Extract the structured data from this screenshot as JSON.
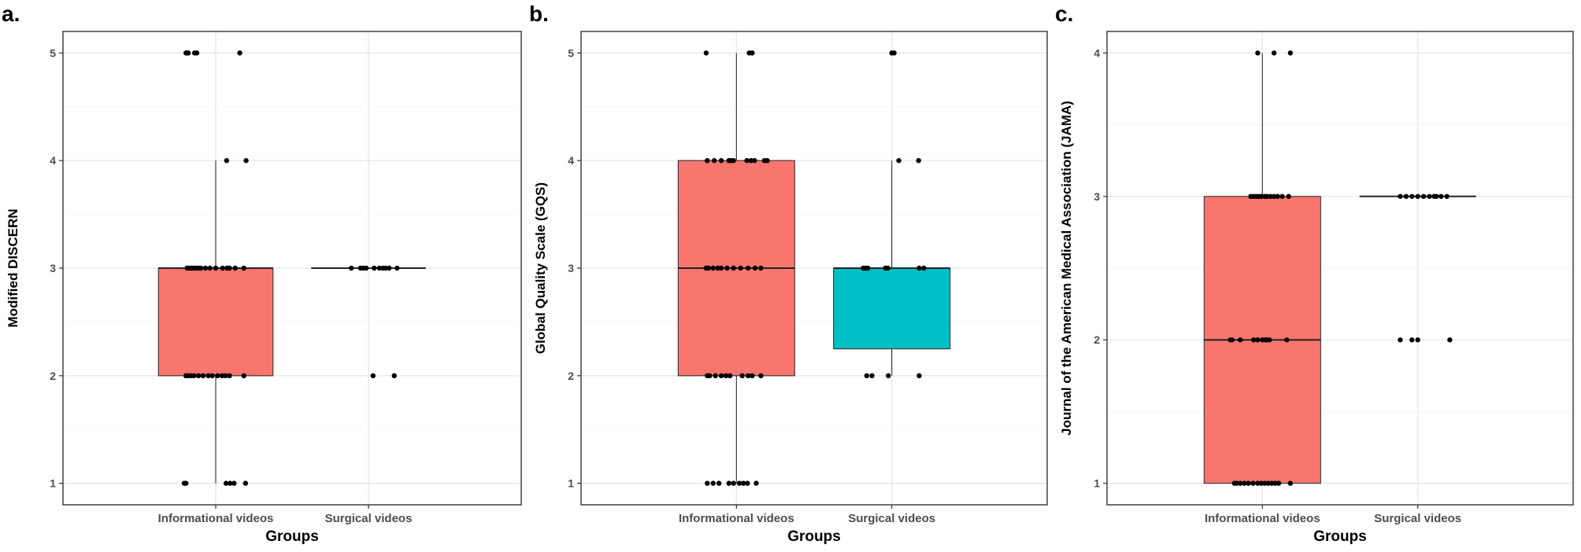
{
  "chart_data": [
    {
      "type": "box",
      "panel_label": "a.",
      "xlabel": "Groups",
      "ylabel": "Modified DISCERN",
      "categories": [
        "Informational videos",
        "Surgical videos"
      ],
      "ylim": [
        0.8,
        5.2
      ],
      "yticks": [
        1,
        2,
        3,
        4,
        5
      ],
      "grid": true,
      "series": [
        {
          "category": "Informational videos",
          "color": "#F8766D",
          "box": {
            "min": 1,
            "q1": 2,
            "median": 3,
            "q3": 3,
            "max": 4
          },
          "points": [
            {
              "x": -0.52,
              "y": 5
            },
            {
              "x": -0.5,
              "y": 5
            },
            {
              "x": -0.48,
              "y": 5
            },
            {
              "x": -0.37,
              "y": 5
            },
            {
              "x": -0.33,
              "y": 5
            },
            {
              "x": 0.42,
              "y": 5
            },
            {
              "x": 0.19,
              "y": 4
            },
            {
              "x": 0.53,
              "y": 4
            },
            {
              "x": -0.5,
              "y": 3
            },
            {
              "x": -0.46,
              "y": 3
            },
            {
              "x": -0.42,
              "y": 3
            },
            {
              "x": -0.38,
              "y": 3
            },
            {
              "x": -0.34,
              "y": 3
            },
            {
              "x": -0.3,
              "y": 3
            },
            {
              "x": -0.26,
              "y": 3
            },
            {
              "x": -0.18,
              "y": 3
            },
            {
              "x": -0.1,
              "y": 3
            },
            {
              "x": 0.0,
              "y": 3
            },
            {
              "x": 0.12,
              "y": 3
            },
            {
              "x": 0.2,
              "y": 3
            },
            {
              "x": 0.24,
              "y": 3
            },
            {
              "x": 0.34,
              "y": 3
            },
            {
              "x": 0.49,
              "y": 3
            },
            {
              "x": -0.52,
              "y": 2
            },
            {
              "x": -0.48,
              "y": 2
            },
            {
              "x": -0.43,
              "y": 2
            },
            {
              "x": -0.38,
              "y": 2
            },
            {
              "x": -0.3,
              "y": 2
            },
            {
              "x": -0.22,
              "y": 2
            },
            {
              "x": -0.13,
              "y": 2
            },
            {
              "x": -0.06,
              "y": 2
            },
            {
              "x": 0.03,
              "y": 2
            },
            {
              "x": 0.11,
              "y": 2
            },
            {
              "x": 0.17,
              "y": 2
            },
            {
              "x": 0.24,
              "y": 2
            },
            {
              "x": 0.49,
              "y": 2
            },
            {
              "x": -0.55,
              "y": 1
            },
            {
              "x": -0.52,
              "y": 1
            },
            {
              "x": 0.18,
              "y": 1
            },
            {
              "x": 0.25,
              "y": 1
            },
            {
              "x": 0.32,
              "y": 1
            },
            {
              "x": 0.52,
              "y": 1
            }
          ]
        },
        {
          "category": "Surgical videos",
          "color": "#00BFC4",
          "box": {
            "min": 3,
            "q1": 3,
            "median": 3,
            "q3": 3,
            "max": 3
          },
          "points": [
            {
              "x": -0.3,
              "y": 3
            },
            {
              "x": -0.14,
              "y": 3
            },
            {
              "x": -0.09,
              "y": 3
            },
            {
              "x": -0.04,
              "y": 3
            },
            {
              "x": 0.1,
              "y": 3
            },
            {
              "x": 0.19,
              "y": 3
            },
            {
              "x": 0.25,
              "y": 3
            },
            {
              "x": 0.3,
              "y": 3
            },
            {
              "x": 0.36,
              "y": 3
            },
            {
              "x": 0.5,
              "y": 3
            },
            {
              "x": 0.08,
              "y": 2
            },
            {
              "x": 0.45,
              "y": 2
            }
          ]
        }
      ]
    },
    {
      "type": "box",
      "panel_label": "b.",
      "xlabel": "Groups",
      "ylabel": "Global Quality Scale (GQS)",
      "categories": [
        "Informational videos",
        "Surgical videos"
      ],
      "ylim": [
        0.8,
        5.2
      ],
      "yticks": [
        1,
        2,
        3,
        4,
        5
      ],
      "grid": true,
      "series": [
        {
          "category": "Informational videos",
          "color": "#F8766D",
          "box": {
            "min": 1,
            "q1": 2,
            "median": 3,
            "q3": 4,
            "max": 5
          },
          "points": [
            {
              "x": -0.52,
              "y": 5
            },
            {
              "x": 0.22,
              "y": 5
            },
            {
              "x": 0.27,
              "y": 5
            },
            {
              "x": -0.5,
              "y": 4
            },
            {
              "x": -0.38,
              "y": 4
            },
            {
              "x": -0.26,
              "y": 4
            },
            {
              "x": -0.13,
              "y": 4
            },
            {
              "x": -0.09,
              "y": 4
            },
            {
              "x": -0.05,
              "y": 4
            },
            {
              "x": 0.18,
              "y": 4
            },
            {
              "x": 0.25,
              "y": 4
            },
            {
              "x": 0.31,
              "y": 4
            },
            {
              "x": 0.48,
              "y": 4
            },
            {
              "x": 0.53,
              "y": 4
            },
            {
              "x": -0.52,
              "y": 3
            },
            {
              "x": -0.48,
              "y": 3
            },
            {
              "x": -0.4,
              "y": 3
            },
            {
              "x": -0.32,
              "y": 3
            },
            {
              "x": -0.26,
              "y": 3
            },
            {
              "x": -0.16,
              "y": 3
            },
            {
              "x": -0.05,
              "y": 3
            },
            {
              "x": 0.07,
              "y": 3
            },
            {
              "x": 0.2,
              "y": 3
            },
            {
              "x": 0.32,
              "y": 3
            },
            {
              "x": 0.42,
              "y": 3
            },
            {
              "x": -0.5,
              "y": 2
            },
            {
              "x": -0.46,
              "y": 2
            },
            {
              "x": -0.36,
              "y": 2
            },
            {
              "x": -0.26,
              "y": 2
            },
            {
              "x": -0.18,
              "y": 2
            },
            {
              "x": -0.11,
              "y": 2
            },
            {
              "x": 0.1,
              "y": 2
            },
            {
              "x": 0.2,
              "y": 2
            },
            {
              "x": 0.27,
              "y": 2
            },
            {
              "x": 0.42,
              "y": 2
            },
            {
              "x": -0.5,
              "y": 1
            },
            {
              "x": -0.4,
              "y": 1
            },
            {
              "x": -0.3,
              "y": 1
            },
            {
              "x": -0.13,
              "y": 1
            },
            {
              "x": -0.05,
              "y": 1
            },
            {
              "x": 0.05,
              "y": 1
            },
            {
              "x": 0.12,
              "y": 1
            },
            {
              "x": 0.19,
              "y": 1
            },
            {
              "x": 0.34,
              "y": 1
            }
          ]
        },
        {
          "category": "Surgical videos",
          "color": "#00BFC4",
          "box": {
            "min": 2,
            "q1": 2.25,
            "median": 3,
            "q3": 3,
            "max": 4
          },
          "points": [
            {
              "x": 0.0,
              "y": 5
            },
            {
              "x": 0.04,
              "y": 5
            },
            {
              "x": 0.12,
              "y": 4
            },
            {
              "x": 0.46,
              "y": 4
            },
            {
              "x": -0.49,
              "y": 3
            },
            {
              "x": -0.45,
              "y": 3
            },
            {
              "x": -0.41,
              "y": 3
            },
            {
              "x": -0.11,
              "y": 3
            },
            {
              "x": -0.07,
              "y": 3
            },
            {
              "x": 0.47,
              "y": 3
            },
            {
              "x": 0.55,
              "y": 3
            },
            {
              "x": -0.43,
              "y": 2
            },
            {
              "x": -0.34,
              "y": 2
            },
            {
              "x": -0.06,
              "y": 2
            },
            {
              "x": 0.47,
              "y": 2
            }
          ]
        }
      ]
    },
    {
      "type": "box",
      "panel_label": "c.",
      "xlabel": "Groups",
      "ylabel": "Journal of the American Medical Association (JAMA)",
      "categories": [
        "Informational videos",
        "Surgical videos"
      ],
      "ylim": [
        0.85,
        4.15
      ],
      "yticks": [
        1,
        2,
        3,
        4
      ],
      "grid": true,
      "series": [
        {
          "category": "Informational videos",
          "color": "#F8766D",
          "box": {
            "min": 1,
            "q1": 1,
            "median": 2,
            "q3": 3,
            "max": 4
          },
          "points": [
            {
              "x": -0.08,
              "y": 4
            },
            {
              "x": 0.2,
              "y": 4
            },
            {
              "x": 0.48,
              "y": 4
            },
            {
              "x": -0.2,
              "y": 3
            },
            {
              "x": -0.15,
              "y": 3
            },
            {
              "x": -0.1,
              "y": 3
            },
            {
              "x": -0.06,
              "y": 3
            },
            {
              "x": -0.02,
              "y": 3
            },
            {
              "x": 0.04,
              "y": 3
            },
            {
              "x": 0.08,
              "y": 3
            },
            {
              "x": 0.14,
              "y": 3
            },
            {
              "x": 0.2,
              "y": 3
            },
            {
              "x": 0.26,
              "y": 3
            },
            {
              "x": 0.34,
              "y": 3
            },
            {
              "x": 0.45,
              "y": 3
            },
            {
              "x": -0.55,
              "y": 2
            },
            {
              "x": -0.52,
              "y": 2
            },
            {
              "x": -0.38,
              "y": 2
            },
            {
              "x": -0.15,
              "y": 2
            },
            {
              "x": -0.08,
              "y": 2
            },
            {
              "x": 0.0,
              "y": 2
            },
            {
              "x": 0.05,
              "y": 2
            },
            {
              "x": 0.08,
              "y": 2
            },
            {
              "x": 0.12,
              "y": 2
            },
            {
              "x": 0.42,
              "y": 2
            },
            {
              "x": -0.48,
              "y": 1
            },
            {
              "x": -0.44,
              "y": 1
            },
            {
              "x": -0.38,
              "y": 1
            },
            {
              "x": -0.31,
              "y": 1
            },
            {
              "x": -0.24,
              "y": 1
            },
            {
              "x": -0.16,
              "y": 1
            },
            {
              "x": -0.08,
              "y": 1
            },
            {
              "x": -0.02,
              "y": 1
            },
            {
              "x": 0.04,
              "y": 1
            },
            {
              "x": 0.1,
              "y": 1
            },
            {
              "x": 0.16,
              "y": 1
            },
            {
              "x": 0.22,
              "y": 1
            },
            {
              "x": 0.28,
              "y": 1
            },
            {
              "x": 0.48,
              "y": 1
            }
          ]
        },
        {
          "category": "Surgical videos",
          "color": "#00BFC4",
          "box": {
            "min": 3,
            "q1": 3,
            "median": 3,
            "q3": 3,
            "max": 3
          },
          "points": [
            {
              "x": -0.3,
              "y": 3
            },
            {
              "x": -0.2,
              "y": 3
            },
            {
              "x": -0.1,
              "y": 3
            },
            {
              "x": 0.0,
              "y": 3
            },
            {
              "x": 0.1,
              "y": 3
            },
            {
              "x": 0.2,
              "y": 3
            },
            {
              "x": 0.28,
              "y": 3
            },
            {
              "x": 0.32,
              "y": 3
            },
            {
              "x": 0.4,
              "y": 3
            },
            {
              "x": 0.5,
              "y": 3
            },
            {
              "x": -0.3,
              "y": 2
            },
            {
              "x": -0.1,
              "y": 2
            },
            {
              "x": 0.0,
              "y": 2
            },
            {
              "x": 0.55,
              "y": 2
            }
          ]
        }
      ]
    }
  ]
}
